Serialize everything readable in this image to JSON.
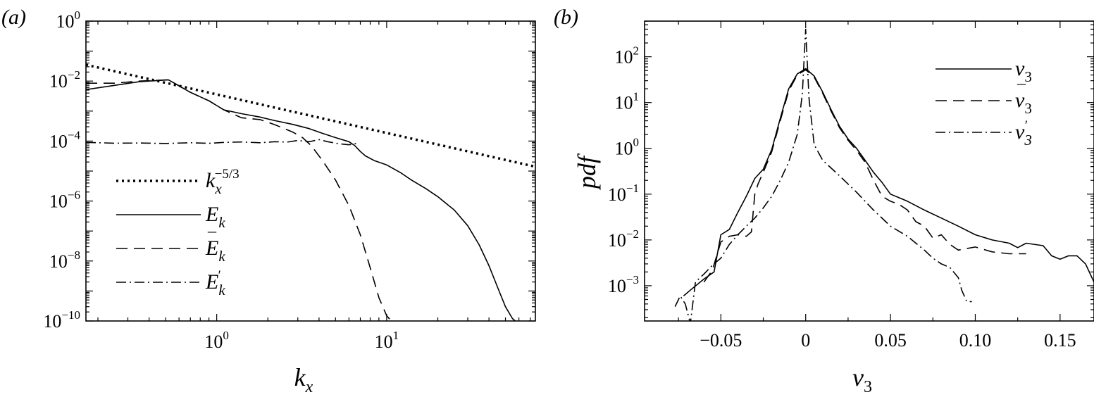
{
  "chart_data": [
    {
      "type": "line",
      "panel_label": "(a)",
      "xlabel": {
        "base": "k",
        "sub": "x"
      },
      "ylabel": "",
      "xscale": "log",
      "yscale": "log",
      "xlim": [
        0.17,
        75
      ],
      "ylim": [
        1e-10,
        1
      ],
      "x_ticks": [
        {
          "value": 1,
          "base": "10",
          "exp": "0"
        },
        {
          "value": 10,
          "base": "10",
          "exp": "1"
        }
      ],
      "y_ticks": [
        {
          "value": 1,
          "base": "10",
          "exp": "0"
        },
        {
          "value": 0.01,
          "base": "10",
          "exp": "−2"
        },
        {
          "value": 0.0001,
          "base": "10",
          "exp": "−4"
        },
        {
          "value": 1e-06,
          "base": "10",
          "exp": "−6"
        },
        {
          "value": 1e-08,
          "base": "10",
          "exp": "−8"
        },
        {
          "value": 1e-10,
          "base": "10",
          "exp": "−10"
        }
      ],
      "grid": false,
      "legend_position": "bottom-left",
      "series": [
        {
          "name": "k_x^-5/3",
          "legend": {
            "base": "k",
            "sub": "x",
            "sup": "−5/3"
          },
          "style": "dotted",
          "x": [
            0.17,
            75
          ],
          "y": [
            0.035,
            1.4e-05
          ]
        },
        {
          "name": "E_k",
          "legend": {
            "base": "E",
            "sub": "k",
            "accent": ""
          },
          "style": "solid",
          "x": [
            0.17,
            0.25,
            0.35,
            0.52,
            0.7,
            0.9,
            1.1,
            1.4,
            1.8,
            2.2,
            2.8,
            3.5,
            4.2,
            5.0,
            6.0,
            6.5,
            7.0,
            7.5,
            8.5,
            10,
            12,
            14,
            17,
            20,
            25,
            30,
            35,
            40,
            45,
            50,
            55,
            60
          ],
          "y": [
            0.0052,
            0.0072,
            0.0095,
            0.011,
            0.0042,
            0.0022,
            0.0011,
            0.00082,
            0.00063,
            0.00048,
            0.00036,
            0.00026,
            0.00018,
            0.00013,
            9.5e-05,
            7e-05,
            4.5e-05,
            3.2e-05,
            2.2e-05,
            1.6e-05,
            9e-06,
            5e-06,
            2.6e-06,
            1.4e-06,
            5e-07,
            1.5e-07,
            3.5e-08,
            7e-09,
            1.3e-09,
            3e-10,
            1.2e-10,
            8e-11
          ]
        },
        {
          "name": "Ē_k",
          "legend": {
            "base": "E",
            "sub": "k",
            "accent": "¯"
          },
          "style": "dashed",
          "x": [
            0.17,
            0.25,
            0.35,
            0.52,
            0.7,
            0.9,
            1.1,
            1.4,
            1.8,
            2.2,
            2.8,
            3.2,
            3.6,
            4.2,
            5.0,
            6.0,
            7.0,
            8.0,
            9.0,
            10,
            11
          ],
          "y": [
            0.0085,
            0.0085,
            0.01,
            0.011,
            0.0042,
            0.0022,
            0.0011,
            0.0006,
            0.00052,
            0.00035,
            0.0002,
            0.00013,
            7e-05,
            2.2e-05,
            5e-06,
            7e-07,
            7.5e-08,
            6e-09,
            6e-10,
            1.5e-10,
            8e-11
          ]
        },
        {
          "name": "E'_k",
          "legend": {
            "base": "E",
            "sub": "k",
            "sup": "′"
          },
          "style": "dashdot",
          "x": [
            0.17,
            0.25,
            0.35,
            0.5,
            0.7,
            0.9,
            1.1,
            1.4,
            1.8,
            2.2,
            2.6,
            3.0,
            3.5,
            4.0,
            4.5,
            5.2,
            6.0,
            6.8
          ],
          "y": [
            9e-05,
            8.5e-05,
            8.6e-05,
            8.3e-05,
            8.8e-05,
            8.4e-05,
            9e-05,
            9.3e-05,
            8.8e-05,
            9.5e-05,
            9.2e-05,
            0.000105,
            9.5e-05,
            0.000112,
            9.5e-05,
            8.2e-05,
            7.5e-05,
            8.5e-05
          ]
        }
      ]
    },
    {
      "type": "line",
      "panel_label": "(b)",
      "xlabel": {
        "base": "v",
        "sub": "3"
      },
      "ylabel": "pdf",
      "xscale": "linear",
      "yscale": "log",
      "xlim": [
        -0.095,
        0.17
      ],
      "ylim": [
        0.00017,
        600
      ],
      "x_ticks": [
        {
          "value": -0.05,
          "label": "−0.05"
        },
        {
          "value": 0,
          "label": "0"
        },
        {
          "value": 0.05,
          "label": "0.05"
        },
        {
          "value": 0.1,
          "label": "0.10"
        },
        {
          "value": 0.15,
          "label": "0.15"
        }
      ],
      "y_ticks": [
        {
          "value": 100,
          "base": "10",
          "exp": "2"
        },
        {
          "value": 10,
          "base": "10",
          "exp": "1"
        },
        {
          "value": 1,
          "base": "10",
          "exp": "0"
        },
        {
          "value": 0.1,
          "base": "10",
          "exp": "−1"
        },
        {
          "value": 0.01,
          "base": "10",
          "exp": "−2"
        },
        {
          "value": 0.001,
          "base": "10",
          "exp": "−3"
        }
      ],
      "grid": false,
      "legend_position": "top-right",
      "series": [
        {
          "name": "v_3",
          "legend": {
            "base": "v",
            "sub": "3",
            "accent": ""
          },
          "style": "solid",
          "x": [
            -0.072,
            -0.068,
            -0.06,
            -0.054,
            -0.05,
            -0.045,
            -0.04,
            -0.035,
            -0.03,
            -0.025,
            -0.02,
            -0.015,
            -0.01,
            -0.005,
            0,
            0.005,
            0.01,
            0.015,
            0.02,
            0.025,
            0.03,
            0.035,
            0.04,
            0.045,
            0.05,
            0.06,
            0.07,
            0.08,
            0.09,
            0.1,
            0.11,
            0.12,
            0.125,
            0.13,
            0.14,
            0.145,
            0.15,
            0.155,
            0.16,
            0.165,
            0.17
          ],
          "y": [
            0.0006,
            0.0008,
            0.0014,
            0.002,
            0.013,
            0.017,
            0.04,
            0.09,
            0.22,
            0.35,
            0.95,
            4.5,
            20,
            42,
            55,
            38,
            17,
            7,
            3,
            1.6,
            1.0,
            0.55,
            0.3,
            0.18,
            0.1,
            0.07,
            0.045,
            0.03,
            0.02,
            0.013,
            0.01,
            0.0085,
            0.0068,
            0.0085,
            0.0075,
            0.0045,
            0.0038,
            0.0045,
            0.0045,
            0.003,
            0.0012
          ]
        },
        {
          "name": "v̄_3",
          "legend": {
            "base": "v",
            "sub": "3",
            "accent": "¯"
          },
          "style": "dashed",
          "x": [
            -0.06,
            -0.055,
            -0.05,
            -0.045,
            -0.04,
            -0.035,
            -0.032,
            -0.03,
            -0.028,
            -0.025,
            -0.02,
            -0.015,
            -0.01,
            -0.005,
            0,
            0.005,
            0.01,
            0.015,
            0.02,
            0.025,
            0.03,
            0.035,
            0.04,
            0.045,
            0.05,
            0.055,
            0.06,
            0.065,
            0.07,
            0.075,
            0.08,
            0.085,
            0.09,
            0.1,
            0.11,
            0.12,
            0.13
          ],
          "y": [
            0.0012,
            0.0022,
            0.009,
            0.012,
            0.013,
            0.012,
            0.015,
            0.1,
            0.17,
            0.3,
            0.85,
            4,
            18,
            40,
            52,
            36,
            16,
            6.5,
            2.8,
            1.5,
            0.9,
            0.5,
            0.2,
            0.09,
            0.07,
            0.06,
            0.045,
            0.025,
            0.02,
            0.011,
            0.013,
            0.008,
            0.006,
            0.007,
            0.0055,
            0.005,
            0.005
          ]
        },
        {
          "name": "v'_3",
          "legend": {
            "base": "v",
            "sub": "3",
            "sup": "′"
          },
          "style": "dashdot",
          "x": [
            -0.077,
            -0.074,
            -0.071,
            -0.068,
            -0.065,
            -0.06,
            -0.055,
            -0.05,
            -0.045,
            -0.04,
            -0.035,
            -0.03,
            -0.025,
            -0.02,
            -0.015,
            -0.01,
            -0.005,
            -0.002,
            0,
            0.002,
            0.005,
            0.01,
            0.02,
            0.03,
            0.04,
            0.05,
            0.06,
            0.07,
            0.075,
            0.08,
            0.085,
            0.09,
            0.092,
            0.095,
            0.098
          ],
          "y": [
            0.00035,
            0.0006,
            0.0004,
            0.00015,
            0.0012,
            0.0018,
            0.0028,
            0.004,
            0.008,
            0.013,
            0.02,
            0.03,
            0.05,
            0.09,
            0.2,
            0.5,
            2,
            15,
            400,
            12,
            1.2,
            0.55,
            0.25,
            0.11,
            0.045,
            0.02,
            0.012,
            0.006,
            0.004,
            0.003,
            0.0025,
            0.0015,
            0.0008,
            0.00045,
            0.00045
          ]
        }
      ]
    }
  ]
}
